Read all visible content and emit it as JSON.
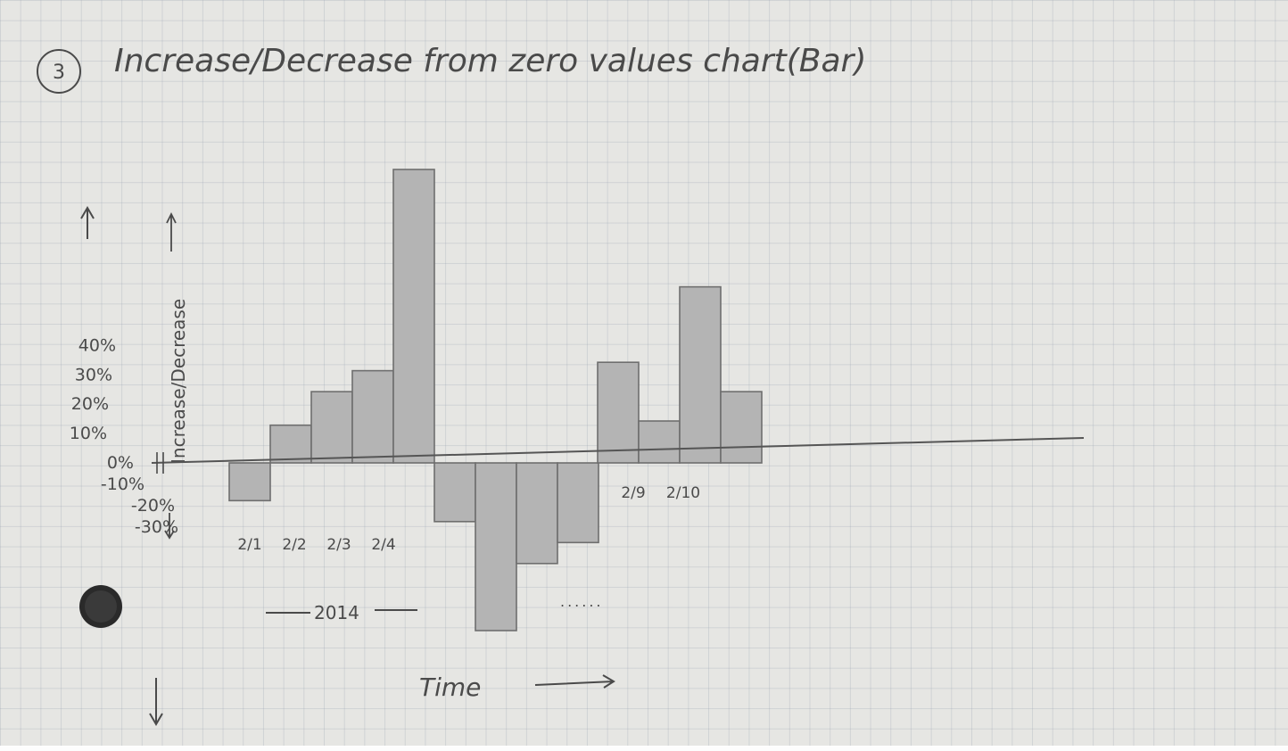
{
  "title": {
    "number": "3",
    "text": "Increase/Decrease from zero values chart(Bar)"
  },
  "chart_data": {
    "type": "bar",
    "title": "Increase/Decrease from zero values chart(Bar)",
    "xlabel": "Time",
    "ylabel": "Increase/Decrease",
    "group_label": "2014",
    "ellipsis": "......",
    "y_ticks": [
      "40%",
      "30%",
      "20%",
      "10%",
      "0%",
      "-10%",
      "-20%",
      "-30%"
    ],
    "ylim": [
      -35,
      70
    ],
    "values": [
      -9,
      9,
      17,
      22,
      70,
      -14,
      -40,
      -24,
      -19,
      24,
      10,
      42,
      17
    ],
    "category_labels": [
      "2/1",
      "2/2",
      "2/3",
      "2/4",
      "",
      "",
      "",
      "",
      "",
      "2/9",
      "2/10",
      "",
      ""
    ]
  },
  "colors": {
    "bar_fill": "#b4b4b4",
    "bar_stroke": "#6e6e6e",
    "pencil": "#4a4a4a",
    "paper": "#e6e6e3",
    "grid": "#9aa2ae"
  }
}
